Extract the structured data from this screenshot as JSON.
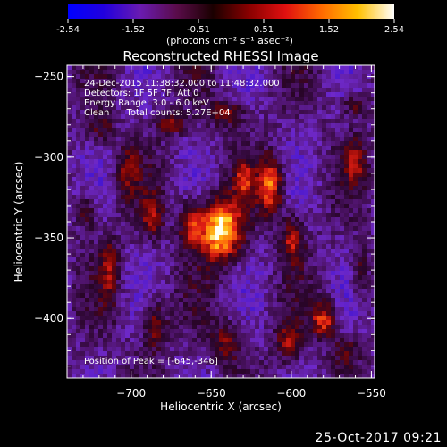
{
  "colorbar": {
    "ticks": [
      "-2.54",
      "-1.52",
      "-0.51",
      "0.51",
      "1.52",
      "2.54"
    ],
    "units": "(photons cm⁻² s⁻¹ asec⁻²)",
    "min": -2.54,
    "max": 2.54,
    "gradient_colors": [
      "#0000ff",
      "#2200dd",
      "#6a1bb0",
      "#5a0c4a",
      "#1a0000",
      "#8a0000",
      "#e01010",
      "#ff6a00",
      "#ffc000",
      "#ffffff"
    ]
  },
  "plot": {
    "title": "Reconstructed RHESSI Image",
    "xlabel": "Heliocentric X (arcsec)",
    "ylabel": "Heliocentric Y (arcsec)",
    "xticks": [
      "-700",
      "-650",
      "-600",
      "-550"
    ],
    "yticks": [
      "-250",
      "-300",
      "-350",
      "-400"
    ],
    "xrange": [
      -740,
      -548
    ],
    "yrange": [
      -437,
      -243
    ],
    "info_lines": [
      "24-Dec-2015 11:38:32.000 to 11:48:32.000",
      "Detectors: 1F 5F 7F, Att 0",
      "Energy Range: 3.0 - 6.0 keV",
      "Clean      Total counts: 5.27E+04"
    ],
    "peak_label": "Position of Peak = [-645,-346]"
  },
  "footer": {
    "date": "25-Oct-2017 09:21"
  }
}
